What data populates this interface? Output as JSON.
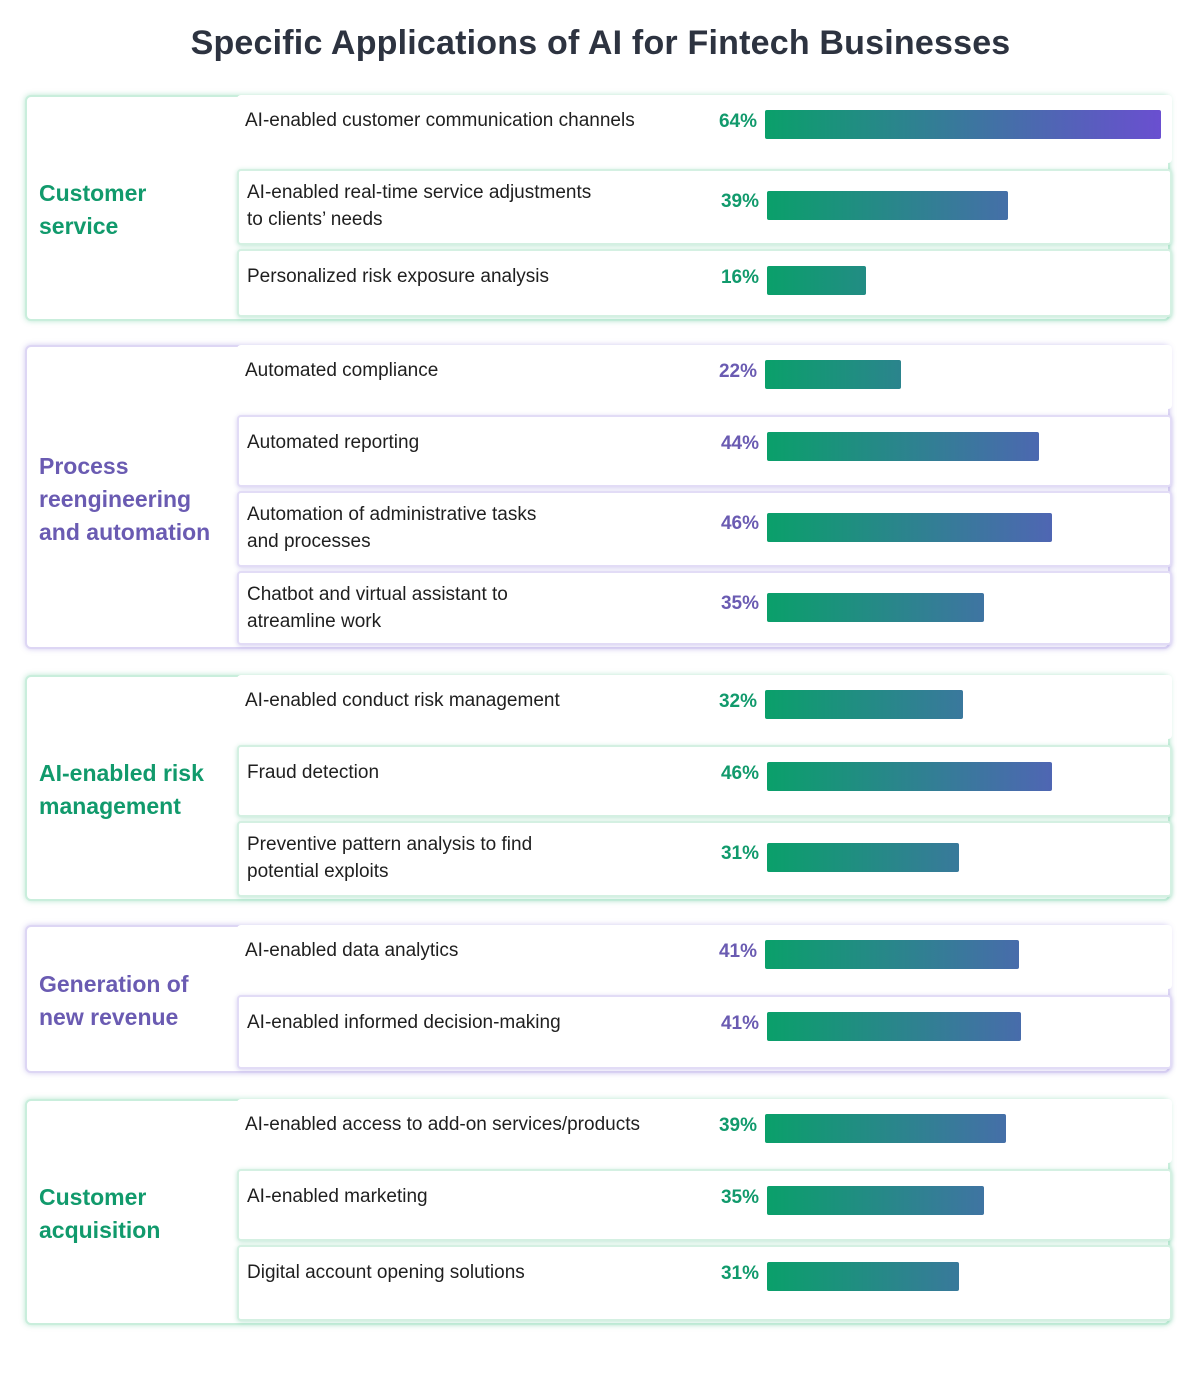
{
  "title": "Specific Applications of AI for Fintech Businesses",
  "colors": {
    "green": "#119a6c",
    "purple": "#6a5bb2",
    "bar_start": "#0aa06a",
    "bar_end": "#6a4fd0"
  },
  "chart_data": {
    "type": "bar",
    "orientation": "horizontal",
    "unit": "%",
    "xlim": [
      0,
      64
    ],
    "groups": [
      {
        "name": "Customer service",
        "color": "green",
        "items": [
          {
            "label": "AI-enabled customer communication channels",
            "value": 64,
            "value_label": "64%"
          },
          {
            "label": "AI-enabled real-time service adjustments to clients’ needs",
            "value": 39,
            "value_label": "39%"
          },
          {
            "label": "Personalized risk exposure analysis",
            "value": 16,
            "value_label": "16%"
          }
        ]
      },
      {
        "name": "Process reengineering and automation",
        "color": "purple",
        "items": [
          {
            "label": "Automated compliance",
            "value": 22,
            "value_label": "22%"
          },
          {
            "label": "Automated reporting",
            "value": 44,
            "value_label": "44%"
          },
          {
            "label": "Automation of administrative tasks and processes",
            "value": 46,
            "value_label": "46%"
          },
          {
            "label": "Chatbot and virtual assistant to atreamline work",
            "value": 35,
            "value_label": "35%"
          }
        ]
      },
      {
        "name": "AI-enabled risk management",
        "color": "green",
        "items": [
          {
            "label": "AI-enabled conduct risk management",
            "value": 32,
            "value_label": "32%"
          },
          {
            "label": "Fraud detection",
            "value": 46,
            "value_label": "46%"
          },
          {
            "label": "Preventive pattern analysis to find potential exploits",
            "value": 31,
            "value_label": "31%"
          }
        ]
      },
      {
        "name": "Generation of new revenue",
        "color": "purple",
        "items": [
          {
            "label": "AI-enabled data analytics",
            "value": 41,
            "value_label": "41%"
          },
          {
            "label": "AI-enabled informed decision-making",
            "value": 41,
            "value_label": "41%"
          }
        ]
      },
      {
        "name": "Customer acquisition",
        "color": "green",
        "items": [
          {
            "label": "AI-enabled access to add-on services/products",
            "value": 39,
            "value_label": "39%"
          },
          {
            "label": "AI-enabled marketing",
            "value": 35,
            "value_label": "35%"
          },
          {
            "label": "Digital account opening solutions",
            "value": 31,
            "value_label": "31%"
          }
        ]
      }
    ]
  }
}
